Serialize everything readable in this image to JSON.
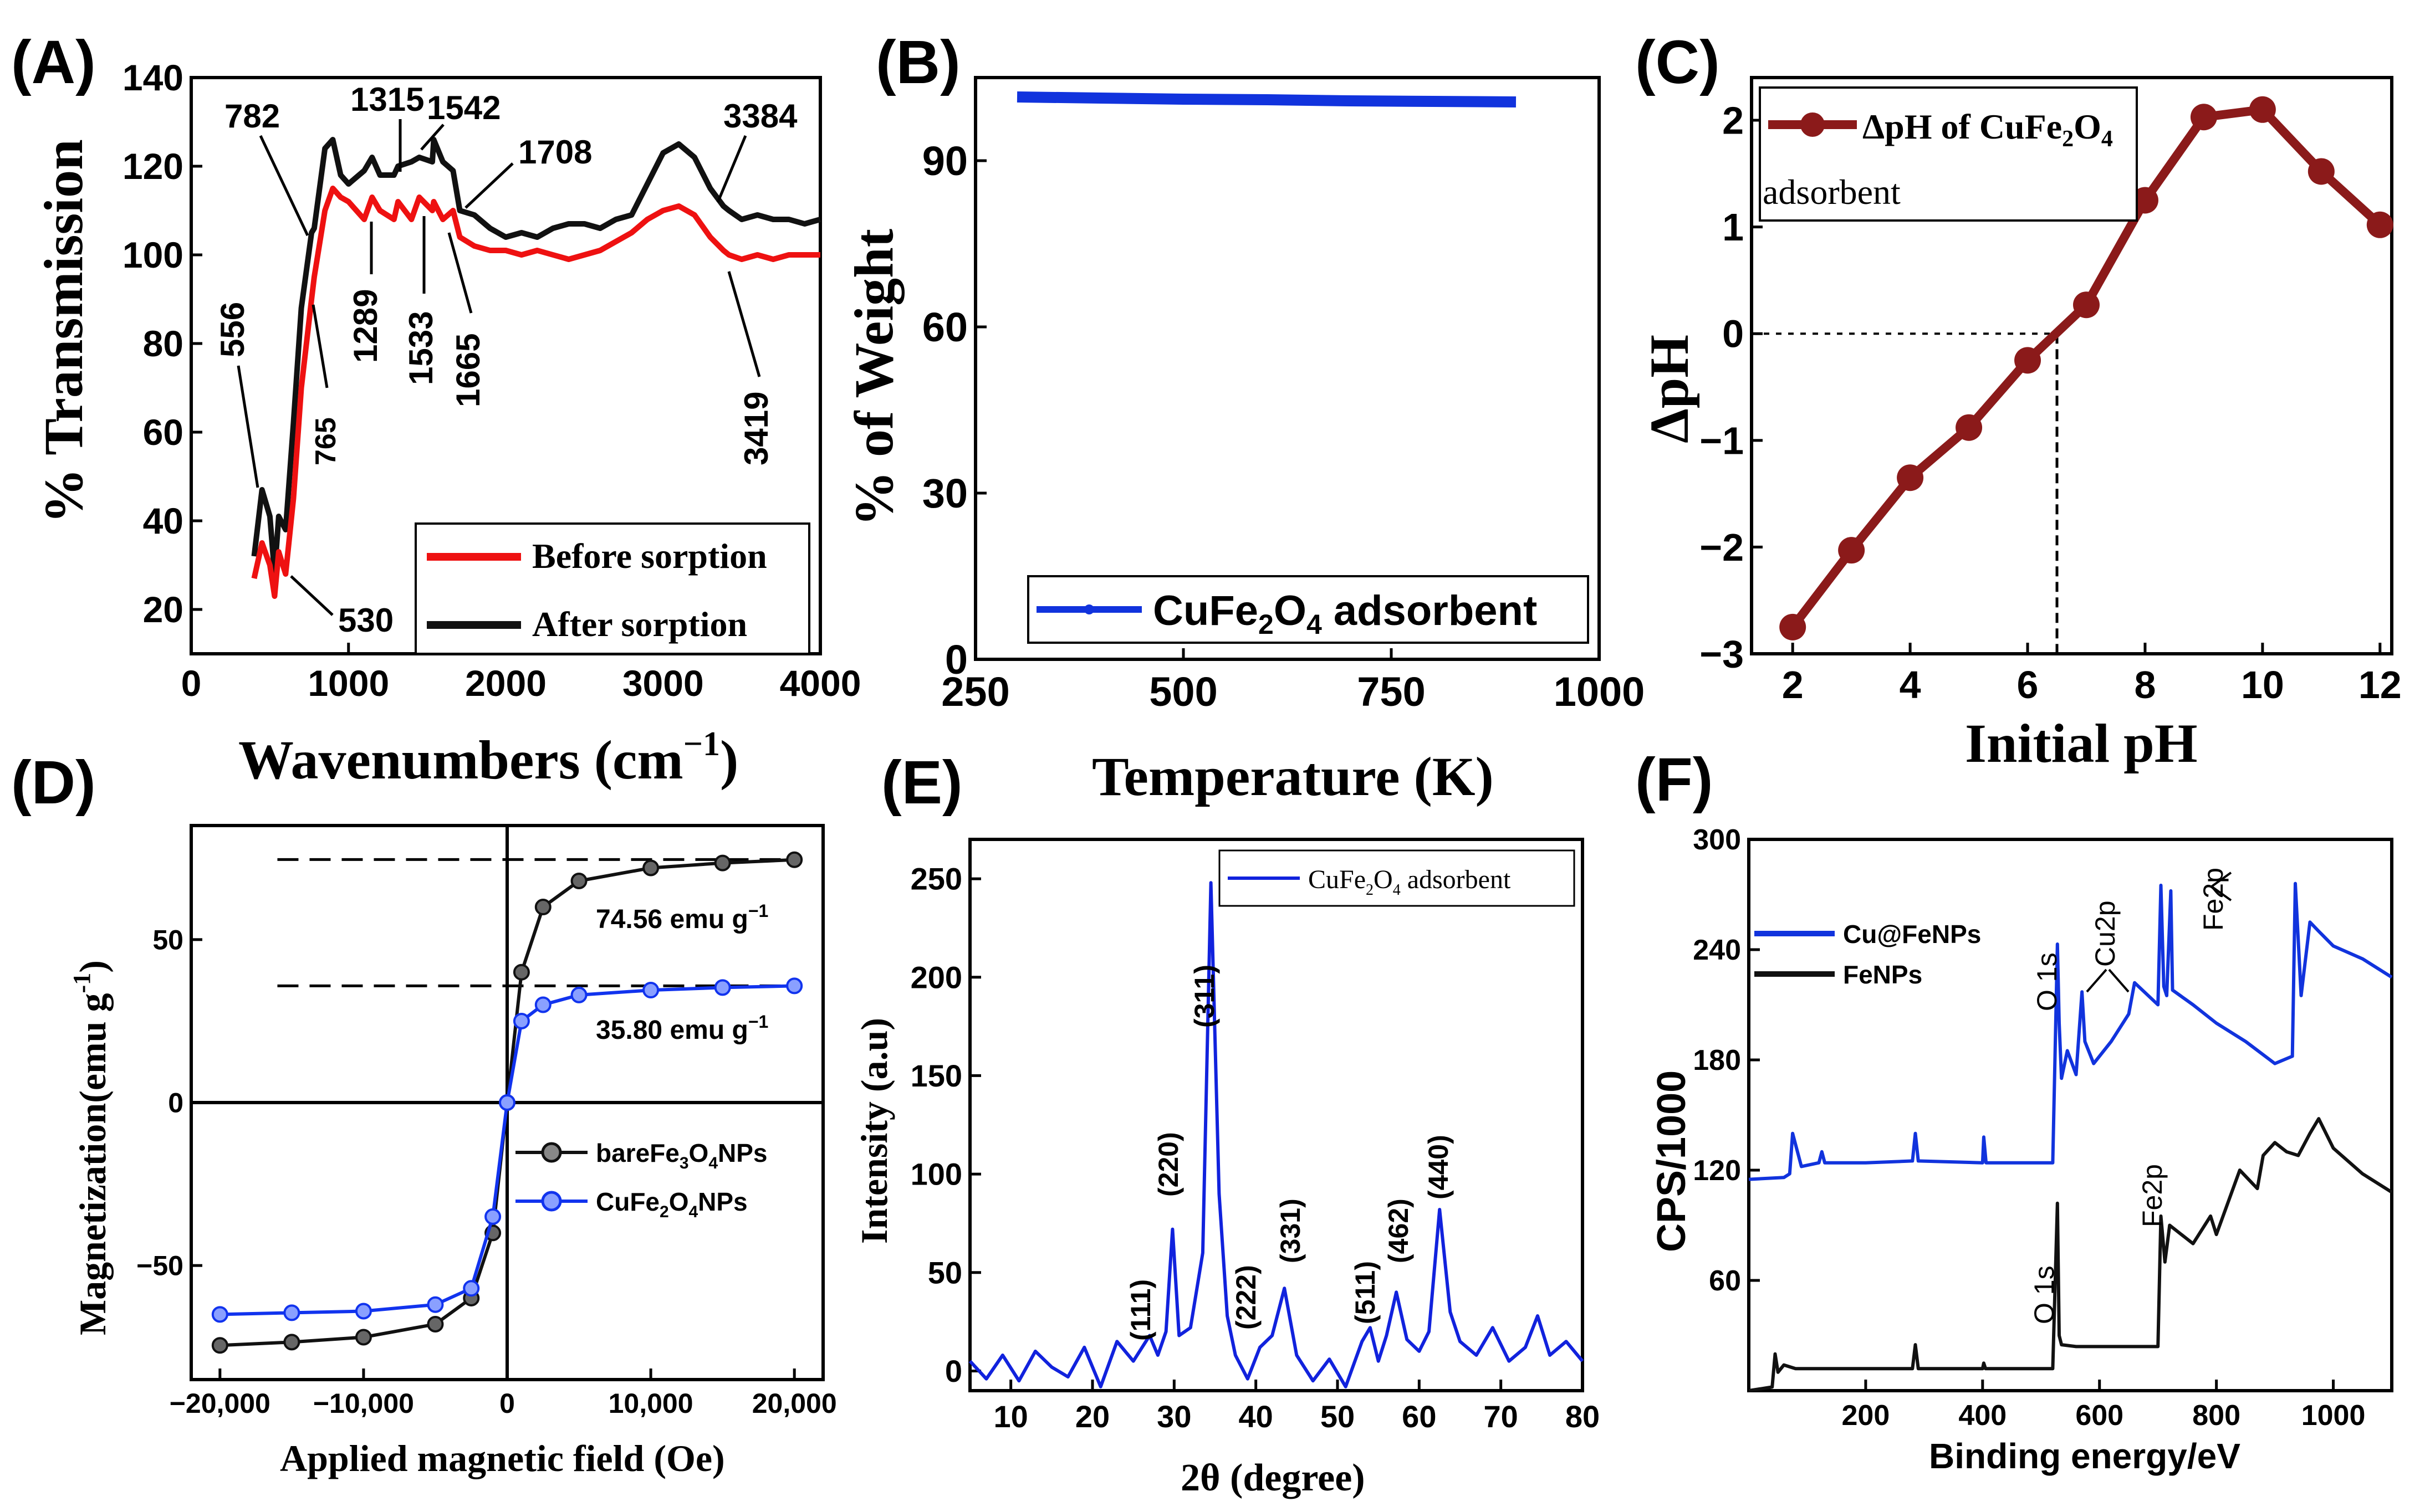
{
  "chart_data": [
    {
      "id": "A",
      "panel_label": "(A)",
      "type": "line",
      "xlabel": "Wavenumbers (cm",
      "xlabel_sup": "−1",
      "xlabel_close": ")",
      "ylabel": "% Transmission",
      "xlim": [
        0,
        4000
      ],
      "ylim": [
        10,
        140
      ],
      "xticks": [
        0,
        1000,
        2000,
        3000,
        4000
      ],
      "yticks": [
        20,
        40,
        60,
        80,
        100,
        120,
        140
      ],
      "legend": "bottom-right",
      "colors": {
        "before": "#ee1111",
        "after": "#111111"
      },
      "series": [
        {
          "name": "Before sorption",
          "x": [
            400,
            450,
            500,
            530,
            556,
            600,
            650,
            700,
            765,
            782,
            850,
            900,
            950,
            1000,
            1100,
            1150,
            1200,
            1289,
            1315,
            1400,
            1450,
            1533,
            1542,
            1600,
            1665,
            1708,
            1800,
            1900,
            2000,
            2100,
            2200,
            2300,
            2400,
            2500,
            2600,
            2700,
            2800,
            2900,
            3000,
            3100,
            3200,
            3300,
            3384,
            3419,
            3500,
            3600,
            3700,
            3800,
            3900,
            4000
          ],
          "y": [
            27,
            35,
            30,
            23,
            33,
            28,
            45,
            70,
            90,
            95,
            110,
            115,
            113,
            112,
            108,
            113,
            110,
            108,
            112,
            108,
            113,
            110,
            112,
            108,
            110,
            104,
            102,
            101,
            101,
            100,
            101,
            100,
            99,
            100,
            101,
            103,
            105,
            108,
            110,
            111,
            109,
            104,
            101,
            100,
            99,
            100,
            99,
            100,
            100,
            100
          ]
        },
        {
          "name": "After sorption",
          "x": [
            400,
            450,
            500,
            530,
            556,
            600,
            650,
            700,
            765,
            782,
            850,
            900,
            950,
            1000,
            1100,
            1150,
            1200,
            1289,
            1315,
            1400,
            1450,
            1533,
            1542,
            1600,
            1665,
            1708,
            1800,
            1900,
            2000,
            2100,
            2200,
            2300,
            2400,
            2500,
            2600,
            2700,
            2800,
            2900,
            3000,
            3100,
            3200,
            3300,
            3384,
            3419,
            3500,
            3600,
            3700,
            3800,
            3900,
            4000
          ],
          "y": [
            32,
            47,
            41,
            28,
            41,
            38,
            62,
            88,
            105,
            106,
            124,
            126,
            118,
            116,
            119,
            122,
            118,
            118,
            120,
            121,
            122,
            121,
            126,
            121,
            119,
            110,
            109,
            106,
            104,
            105,
            104,
            106,
            107,
            107,
            106,
            108,
            109,
            116,
            123,
            125,
            122,
            115,
            111,
            110,
            108,
            109,
            108,
            108,
            107,
            108
          ]
        }
      ],
      "annotations": [
        "782",
        "1315",
        "1542",
        "1708",
        "3384",
        "556",
        "765",
        "1289",
        "1533",
        "1665",
        "3419",
        "530"
      ]
    },
    {
      "id": "B",
      "panel_label": "(B)",
      "type": "line",
      "xlabel": "Temperature (K)",
      "ylabel": "% of Weight",
      "xlim": [
        250,
        1000
      ],
      "ylim": [
        0,
        105
      ],
      "xticks": [
        250,
        500,
        750,
        1000
      ],
      "yticks": [
        0,
        30,
        60,
        90
      ],
      "legend": "bottom-right",
      "colors": {
        "line": "#1133dd"
      },
      "series": [
        {
          "name": "CuFe2O4 adsorbent",
          "x": [
            300,
            400,
            500,
            600,
            700,
            800,
            900
          ],
          "y": [
            101.5,
            101.3,
            101.1,
            101.0,
            100.8,
            100.7,
            100.6
          ]
        }
      ],
      "legend_text": "CuFe",
      "legend_sub1": "2",
      "legend_mid": "O",
      "legend_sub2": "4",
      "legend_tail": " adsorbent"
    },
    {
      "id": "C",
      "panel_label": "(C)",
      "type": "line",
      "xlabel": "Initial pH",
      "ylabel": "ΔpH",
      "xlim": [
        1.3,
        12.2
      ],
      "ylim": [
        -3,
        2.4
      ],
      "xticks": [
        2,
        4,
        6,
        8,
        10,
        12
      ],
      "yticks": [
        -3,
        -2,
        -1,
        0,
        1,
        2
      ],
      "legend": "top-left",
      "colors": {
        "line": "#8b1a1a"
      },
      "series": [
        {
          "name": "ΔpH of CuFe2O4 adsorbent",
          "x": [
            2,
            3,
            4,
            5,
            6,
            7,
            8,
            9,
            10,
            11,
            12
          ],
          "y": [
            -2.75,
            -2.03,
            -1.35,
            -0.88,
            -0.25,
            0.27,
            1.25,
            2.03,
            2.1,
            1.52,
            1.02
          ]
        }
      ],
      "pzc": 6.5,
      "legend_line1a": "ΔpH of CuFe",
      "legend_sub1": "2",
      "legend_mid": "O",
      "legend_sub2": "4",
      "legend_line2": "adsorbent"
    },
    {
      "id": "D",
      "panel_label": "(D)",
      "type": "scatter",
      "xlabel": "Applied magnetic field (Oe)",
      "ylabel": "Magnetization(emu g",
      "ylabel_sup": "-1",
      "ylabel_close": ")",
      "xlim": [
        -22000,
        22000
      ],
      "ylim": [
        -85,
        85
      ],
      "xticks": [
        -20000,
        -10000,
        0,
        10000,
        20000
      ],
      "xtick_labels": [
        "−20,000",
        "−10,000",
        "0",
        "10,000",
        "20,000"
      ],
      "yticks": [
        -50,
        0,
        50
      ],
      "ytick_labels": [
        "−50",
        "0",
        "50"
      ],
      "legend": "center-right",
      "colors": {
        "bare": "#111111",
        "cu": "#1133ee"
      },
      "series": [
        {
          "name": "bareFe3O4NPs",
          "Ms": 74.56,
          "x": [
            -20000,
            -15000,
            -10000,
            -5000,
            -2500,
            -1000,
            0,
            1000,
            2500,
            5000,
            10000,
            15000,
            20000
          ],
          "y": [
            -74.5,
            -73.5,
            -72,
            -68,
            -60,
            -40,
            0,
            40,
            60,
            68,
            72,
            73.5,
            74.5
          ]
        },
        {
          "name": "CuFe2O4NPs",
          "Ms": 35.8,
          "x": [
            -20000,
            -15000,
            -10000,
            -5000,
            -2500,
            -1000,
            0,
            1000,
            2500,
            5000,
            10000,
            15000,
            20000
          ],
          "y": [
            -65,
            -64.5,
            -64,
            -62,
            -57,
            -35,
            0,
            25,
            30,
            33,
            34.5,
            35.3,
            35.8
          ]
        }
      ],
      "annotation_top": "74.56 emu g",
      "annotation_bottom": "35.80 emu g",
      "annotation_sup": "−1",
      "legend1a": "bareFe",
      "legend1b": "O",
      "legend1c": "NPs",
      "legend2a": "CuFe",
      "legend2b": "O",
      "legend2c": "NPs",
      "sub2": "2",
      "sub3": "3",
      "sub4": "4"
    },
    {
      "id": "E",
      "panel_label": "(E)",
      "type": "line",
      "xlabel": "2θ (degree)",
      "ylabel": "Intensity (a.u)",
      "xlim": [
        5,
        80
      ],
      "ylim": [
        -10,
        270
      ],
      "xticks": [
        10,
        20,
        30,
        40,
        50,
        60,
        70,
        80
      ],
      "yticks": [
        0,
        50,
        100,
        150,
        200,
        250
      ],
      "legend": "top-right",
      "colors": {
        "line": "#1122dd"
      },
      "series": [
        {
          "name": "CuFe2O4 adsorbent",
          "x": [
            5,
            7,
            9,
            11,
            13,
            15,
            17,
            19,
            21,
            23,
            25,
            27,
            28,
            29,
            29.8,
            30.6,
            32,
            33.5,
            34.5,
            35.5,
            36.5,
            37.5,
            39,
            40.5,
            42,
            43.5,
            45,
            47,
            49,
            51,
            53,
            54,
            55,
            56,
            57.2,
            58.5,
            60,
            61.2,
            62.5,
            63.8,
            65,
            67,
            69,
            71,
            73,
            74.5,
            76,
            78,
            80
          ],
          "y": [
            5,
            -4,
            8,
            -5,
            10,
            2,
            -3,
            12,
            -8,
            15,
            5,
            18,
            8,
            20,
            72,
            18,
            22,
            60,
            248,
            90,
            28,
            8,
            -4,
            12,
            18,
            42,
            8,
            -5,
            6,
            -8,
            15,
            22,
            5,
            18,
            40,
            16,
            10,
            20,
            82,
            30,
            15,
            8,
            22,
            5,
            12,
            28,
            8,
            15,
            5
          ]
        }
      ],
      "peak_labels": [
        "(111)",
        "(220)",
        "(311)",
        "(222)",
        "(331)",
        "(511)",
        "(462)",
        "(440)"
      ],
      "legend_a": "CuFe",
      "legend_sub1": "2",
      "legend_mid": "O",
      "legend_sub2": "4",
      "legend_tail": " adsorbent"
    },
    {
      "id": "F",
      "panel_label": "(F)",
      "type": "line",
      "xlabel": "Binding energy/eV",
      "ylabel": "CPS/1000",
      "xlim": [
        0,
        1100
      ],
      "ylim": [
        0,
        300
      ],
      "xticks": [
        200,
        400,
        600,
        800,
        1000
      ],
      "yticks": [
        60,
        120,
        180,
        240,
        300
      ],
      "legend": "top-left",
      "colors": {
        "cu": "#1133dd",
        "fe": "#111111"
      },
      "series": [
        {
          "name": "Cu@FeNPs",
          "x": [
            0,
            60,
            70,
            75,
            90,
            120,
            125,
            130,
            200,
            280,
            285,
            290,
            400,
            402,
            406,
            520,
            528,
            531,
            535,
            545,
            560,
            570,
            575,
            590,
            620,
            650,
            660,
            700,
            705,
            710,
            715,
            722,
            725,
            760,
            800,
            850,
            900,
            930,
            935,
            945,
            960,
            975,
            1000,
            1050,
            1100
          ],
          "y": [
            115,
            116,
            118,
            140,
            122,
            124,
            130,
            124,
            124,
            125,
            140,
            125,
            124,
            138,
            124,
            124,
            243,
            200,
            170,
            185,
            172,
            217,
            190,
            178,
            190,
            205,
            222,
            210,
            275,
            220,
            215,
            272,
            218,
            210,
            200,
            190,
            178,
            182,
            276,
            215,
            255,
            250,
            242,
            235,
            225
          ]
        },
        {
          "name": "FeNPs",
          "x": [
            0,
            40,
            45,
            50,
            60,
            80,
            200,
            280,
            285,
            290,
            400,
            402,
            405,
            520,
            528,
            531,
            535,
            560,
            600,
            700,
            705,
            712,
            720,
            760,
            790,
            800,
            840,
            870,
            880,
            900,
            920,
            940,
            960,
            975,
            1000,
            1050,
            1100
          ],
          "y": [
            0,
            2,
            20,
            10,
            14,
            12,
            12,
            12,
            25,
            12,
            12,
            15,
            12,
            12,
            102,
            30,
            25,
            24,
            24,
            24,
            95,
            70,
            90,
            80,
            95,
            85,
            120,
            110,
            128,
            135,
            130,
            128,
            140,
            148,
            132,
            118,
            108
          ]
        }
      ],
      "ann_o1s_top": "O 1s",
      "ann_cu2p": "Cu2p",
      "ann_fe2p_top": "Fe2p",
      "ann_o1s_bottom": "O 1s",
      "ann_fe2p_bottom": "Fe2p"
    }
  ]
}
